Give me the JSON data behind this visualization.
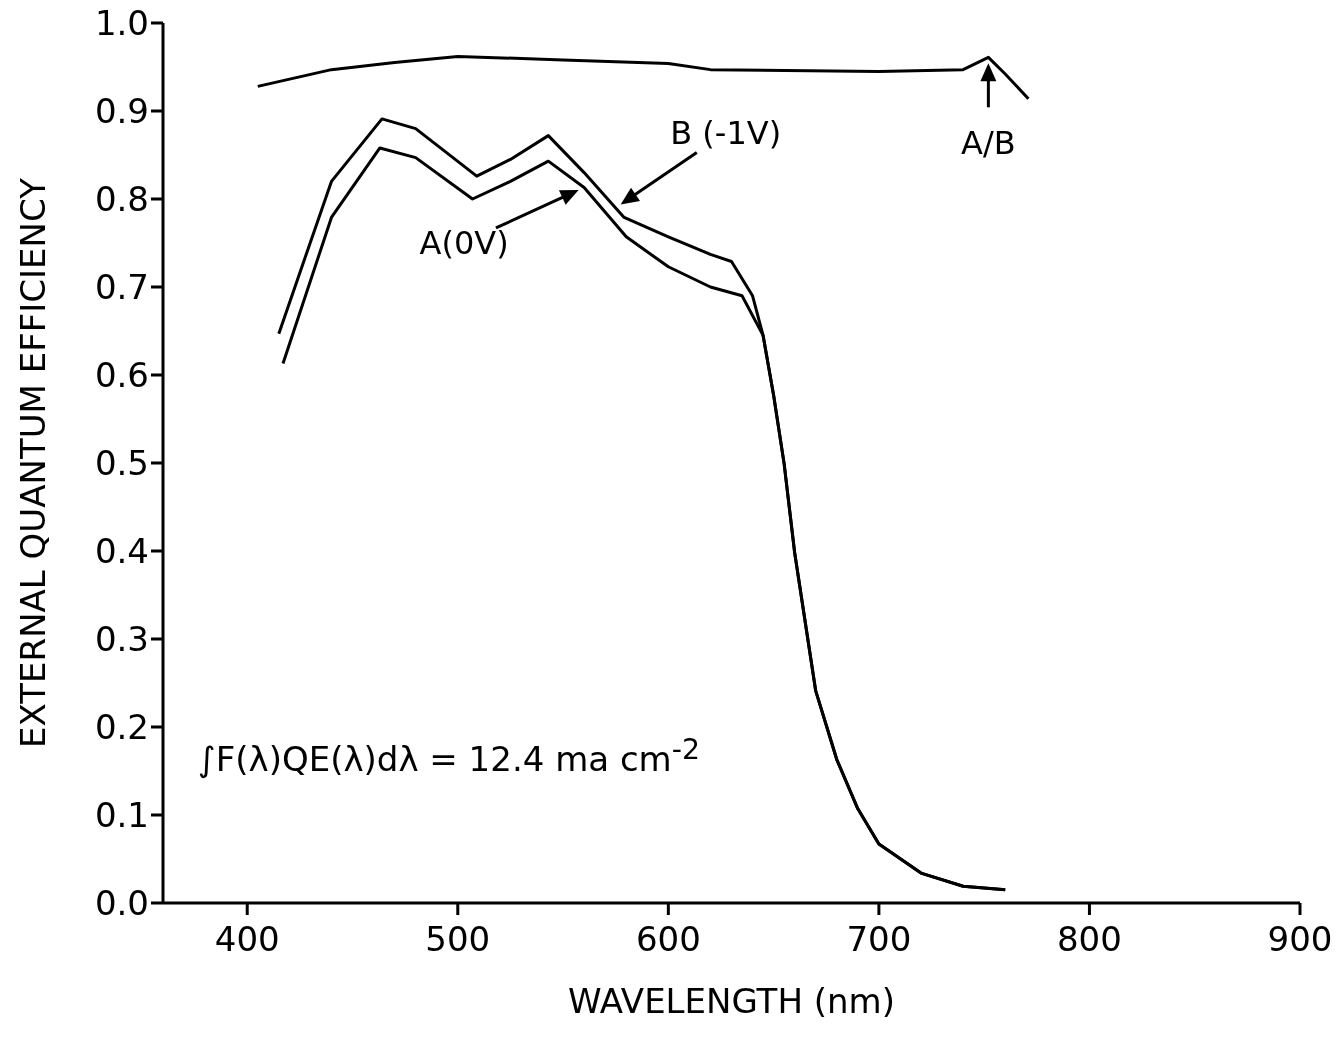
{
  "chart_data": {
    "type": "line",
    "xlabel": "WAVELENGTH (nm)",
    "ylabel": "EXTERNAL QUANTUM EFFICIENCY",
    "xlim": [
      360,
      900
    ],
    "xticks": [
      400,
      500,
      600,
      700,
      800,
      900
    ],
    "ylim": [
      0,
      1
    ],
    "yticks": [
      {
        "value": 0,
        "label": "0.0"
      },
      {
        "value": 0.1,
        "label": "0.1"
      },
      {
        "value": 0.2,
        "label": "0.2"
      },
      {
        "value": 0.3,
        "label": "0.3"
      },
      {
        "value": 0.4,
        "label": "0.4"
      },
      {
        "value": 0.5,
        "label": "0.5"
      },
      {
        "value": 0.6,
        "label": "0.6"
      },
      {
        "value": 0.7,
        "label": "0.7"
      },
      {
        "value": 0.8,
        "label": "0.8"
      },
      {
        "value": 0.9,
        "label": "0.9"
      },
      {
        "value": 1,
        "label": "1.0"
      }
    ],
    "grid": false,
    "legend": false,
    "marker": "none",
    "line_style": "solid",
    "series": [
      {
        "color": "#000000",
        "x": [
          405,
          440,
          470,
          500,
          550,
          600,
          620,
          700,
          740,
          752,
          760,
          771
        ],
        "values": [
          0.928,
          0.947,
          0.955,
          0.962,
          0.958,
          0.954,
          0.947,
          0.945,
          0.947,
          0.961,
          0.942,
          0.914
        ]
      },
      {
        "color": "#000000",
        "x": [
          415,
          440,
          464,
          480,
          509,
          525,
          543,
          560,
          579,
          600,
          620,
          630,
          640,
          645,
          650,
          655,
          660,
          670,
          680,
          690,
          700,
          720,
          740,
          760
        ],
        "values": [
          0.647,
          0.82,
          0.891,
          0.88,
          0.826,
          0.845,
          0.872,
          0.83,
          0.779,
          0.757,
          0.737,
          0.729,
          0.69,
          0.645,
          0.577,
          0.499,
          0.398,
          0.241,
          0.163,
          0.107,
          0.067,
          0.034,
          0.019,
          0.015
        ]
      },
      {
        "color": "#000000",
        "x": [
          417,
          440,
          463,
          480,
          507,
          525,
          543,
          560,
          580,
          600,
          620,
          635,
          645,
          650,
          655,
          660,
          670,
          680,
          690,
          700,
          720,
          740,
          760
        ],
        "values": [
          0.613,
          0.779,
          0.858,
          0.847,
          0.8,
          0.82,
          0.843,
          0.813,
          0.757,
          0.723,
          0.7,
          0.69,
          0.645,
          0.577,
          0.499,
          0.398,
          0.241,
          0.163,
          0.107,
          0.067,
          0.034,
          0.019,
          0.015
        ]
      }
    ],
    "annotations": [
      {
        "text": "B (-1V)",
        "x": 575,
        "y": 0.79
      },
      {
        "text": "A(0V)",
        "x": 560,
        "y": 0.813
      },
      {
        "text": "A/B",
        "x": 752,
        "y": 0.961
      },
      "∫F(λ)QE(λ)dλ = 12.4 ma cm$^{-2}$"
    ]
  }
}
